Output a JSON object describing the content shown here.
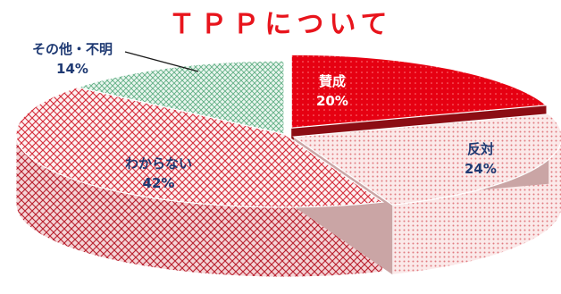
{
  "chart_data": {
    "type": "pie",
    "title": "ＴＰＰについて",
    "unit": "%",
    "slices": [
      {
        "label": "賛成",
        "value": 20,
        "value_label": "20%",
        "color": "#e60012",
        "text_color": "#ffffff"
      },
      {
        "label": "反対",
        "value": 24,
        "value_label": "24%",
        "color": "#f2c8c8",
        "text_color": "#1f3a73"
      },
      {
        "label": "わからない",
        "value": 42,
        "value_label": "42%",
        "color": "#d83040",
        "text_color": "#1f3a73"
      },
      {
        "label": "その他・不明",
        "value": 14,
        "value_label": "14%",
        "color": "#b8dcc6",
        "text_color": "#1f3a73"
      }
    ]
  }
}
